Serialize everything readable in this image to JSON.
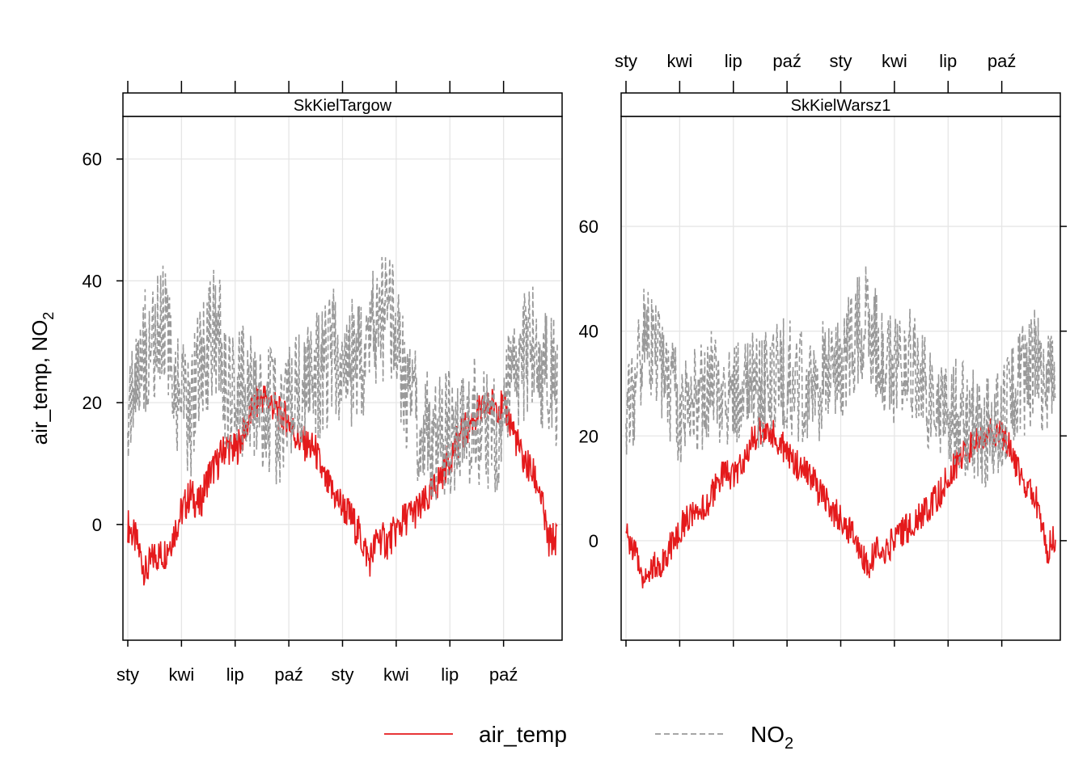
{
  "chart_data": {
    "type": "line",
    "ylabel": "air_temp, NO",
    "ylabel_sub": "2",
    "grid": true,
    "legend_placement": "bottom",
    "legend": [
      {
        "label": "air_temp",
        "sub": "",
        "color": "#e41a1c",
        "style": "solid"
      },
      {
        "label": "NO",
        "sub": "2",
        "color": "#999999",
        "style": "dashed"
      }
    ],
    "x_tick_labels": [
      "sty",
      "kwi",
      "lip",
      "paź",
      "sty",
      "kwi",
      "lip",
      "paź"
    ],
    "x_range_months": [
      0,
      24
    ],
    "panels": [
      {
        "name": "SkKielTargow",
        "ylim": [
          -19,
          67
        ],
        "yticks": [
          0,
          20,
          40,
          60
        ],
        "y_axis_side": "left",
        "x_labels_side": "bottom",
        "series": [
          {
            "name": "air_temp",
            "x": [
              0,
              0.5,
              1,
              1.5,
              2,
              2.5,
              3,
              3.5,
              4,
              4.5,
              5,
              5.5,
              6,
              6.5,
              7,
              7.5,
              8,
              8.5,
              9,
              9.5,
              10,
              10.5,
              11,
              11.5,
              12,
              12.5,
              13,
              13.5,
              14,
              14.5,
              15,
              15.5,
              16,
              16.5,
              17,
              17.5,
              18,
              18.5,
              19,
              19.5,
              20,
              20.5,
              21,
              21.5,
              22,
              22.5,
              23,
              23.5,
              24
            ],
            "y": [
              0,
              -3,
              -8,
              -5,
              -5,
              -2,
              2,
              5,
              3,
              8,
              10,
              13,
              12,
              15,
              19,
              21,
              20,
              18,
              17,
              14,
              13,
              12,
              7,
              5,
              3,
              1,
              -2,
              -6,
              -2,
              -3,
              -1,
              1,
              2,
              3,
              5,
              8,
              11,
              14,
              16,
              18,
              19,
              20,
              19,
              16,
              11,
              9,
              6,
              -3,
              -2
            ]
          },
          {
            "name": "NO2",
            "x": [
              0,
              0.5,
              1,
              1.5,
              2,
              2.5,
              3,
              3.5,
              4,
              4.5,
              5,
              5.5,
              6,
              6.5,
              7,
              7.5,
              8,
              8.5,
              9,
              9.5,
              10,
              10.5,
              11,
              11.5,
              12,
              12.5,
              13,
              13.5,
              14,
              14.5,
              15,
              15.5,
              16,
              16.5,
              17,
              17.5,
              18,
              18.5,
              19,
              19.5,
              20,
              20.5,
              21,
              21.5,
              22,
              22.5,
              23,
              23.5,
              24
            ],
            "y": [
              20,
              25,
              28,
              30,
              33,
              26,
              20,
              18,
              26,
              30,
              32,
              22,
              20,
              22,
              20,
              19,
              18,
              17,
              20,
              22,
              23,
              24,
              26,
              28,
              25,
              27,
              28,
              30,
              32,
              35,
              30,
              22,
              18,
              16,
              15,
              14,
              15,
              16,
              17,
              18,
              16,
              15,
              18,
              22,
              26,
              30,
              28,
              24,
              22
            ]
          }
        ]
      },
      {
        "name": "SkKielWarsz1",
        "ylim": [
          -19,
          81
        ],
        "yticks": [
          0,
          20,
          40,
          60
        ],
        "y_axis_side": "right",
        "x_labels_side": "top",
        "series": [
          {
            "name": "air_temp",
            "x": [
              0,
              0.5,
              1,
              1.5,
              2,
              2.5,
              3,
              3.5,
              4,
              4.5,
              5,
              5.5,
              6,
              6.5,
              7,
              7.5,
              8,
              8.5,
              9,
              9.5,
              10,
              10.5,
              11,
              11.5,
              12,
              12.5,
              13,
              13.5,
              14,
              14.5,
              15,
              15.5,
              16,
              16.5,
              17,
              17.5,
              18,
              18.5,
              19,
              19.5,
              20,
              20.5,
              21,
              21.5,
              22,
              22.5,
              23,
              23.5,
              24
            ],
            "y": [
              1,
              -2,
              -7,
              -5,
              -4,
              -1,
              2,
              5,
              4,
              7,
              10,
              13,
              12,
              15,
              19,
              21,
              21,
              19,
              17,
              15,
              13,
              11,
              8,
              6,
              4,
              2,
              -1,
              -5,
              -2,
              -2,
              0,
              2,
              3,
              5,
              7,
              9,
              12,
              15,
              17,
              19,
              20,
              21,
              20,
              18,
              12,
              10,
              7,
              -2,
              1
            ]
          },
          {
            "name": "NO2",
            "x": [
              0,
              0.5,
              1,
              1.5,
              2,
              2.5,
              3,
              3.5,
              4,
              4.5,
              5,
              5.5,
              6,
              6.5,
              7,
              7.5,
              8,
              8.5,
              9,
              9.5,
              10,
              10.5,
              11,
              11.5,
              12,
              12.5,
              13,
              13.5,
              14,
              14.5,
              15,
              15.5,
              16,
              16.5,
              17,
              17.5,
              18,
              18.5,
              19,
              19.5,
              20,
              20.5,
              21,
              21.5,
              22,
              22.5,
              23,
              23.5,
              24
            ],
            "y": [
              22,
              30,
              40,
              38,
              32,
              28,
              25,
              27,
              26,
              28,
              30,
              27,
              28,
              29,
              30,
              28,
              30,
              31,
              32,
              30,
              29,
              28,
              31,
              33,
              34,
              36,
              40,
              42,
              38,
              34,
              32,
              35,
              33,
              30,
              28,
              27,
              25,
              24,
              23,
              22,
              21,
              22,
              24,
              28,
              30,
              32,
              34,
              28,
              30
            ]
          }
        ]
      }
    ]
  }
}
